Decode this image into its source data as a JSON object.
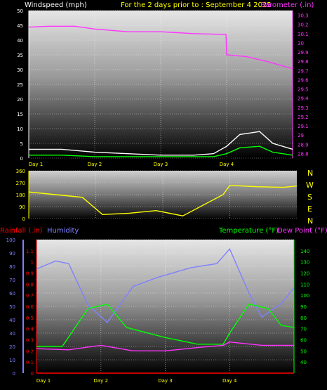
{
  "chart_data": [
    {
      "type": "line",
      "title": "For the 2 days prior to : September 4 2025",
      "ylabel_left": "Windspeed (mph)",
      "ylabel_right": "Barometer (.in)",
      "categories": [
        "Day 1",
        "Day 2",
        "Day 3",
        "Day 4"
      ],
      "y_left": {
        "range": [
          0,
          50
        ],
        "ticks": [
          "0",
          "5",
          "10",
          "15",
          "20",
          "25",
          "30",
          "35",
          "40",
          "45",
          "50"
        ]
      },
      "y_right": {
        "range": [
          28.75,
          30.35
        ],
        "ticks": [
          "28.8",
          "28.9",
          "29",
          "29.1",
          "29.2",
          "29.3",
          "29.4",
          "29.5",
          "29.6",
          "29.7",
          "29.8",
          "29.9",
          "30",
          "30.1",
          "30.2",
          "30.3"
        ]
      },
      "grid": true,
      "series": [
        {
          "axis": "right",
          "color": "#ff33ff",
          "x": [
            0,
            0.3,
            0.7,
            1.0,
            1.5,
            2.0,
            2.5,
            2.99,
            3.0,
            3.3,
            3.6,
            4.0
          ],
          "values": [
            30.17,
            30.18,
            30.18,
            30.15,
            30.12,
            30.12,
            30.1,
            30.09,
            29.87,
            29.85,
            29.8,
            29.72
          ]
        },
        {
          "axis": "left",
          "color": "#ffffff",
          "x": [
            0,
            0.5,
            1.0,
            1.5,
            2.0,
            2.5,
            2.8,
            3.0,
            3.2,
            3.5,
            3.7,
            4.0
          ],
          "values": [
            3,
            3,
            2,
            1.5,
            1,
            1,
            1.5,
            4,
            8,
            9,
            5,
            3
          ]
        },
        {
          "axis": "left",
          "color": "#00ff00",
          "x": [
            0,
            0.5,
            1.0,
            1.5,
            2.0,
            2.5,
            2.8,
            3.0,
            3.2,
            3.5,
            3.7,
            4.0
          ],
          "values": [
            1,
            1,
            0.5,
            0.5,
            0.5,
            0.5,
            0.5,
            1.5,
            3.5,
            4,
            2,
            1
          ]
        }
      ]
    },
    {
      "type": "line",
      "ylabel_right": "N W S E N",
      "direction_labels": [
        "N",
        "W",
        "S",
        "E",
        "N"
      ],
      "categories": [],
      "y": {
        "range": [
          0,
          360
        ],
        "ticks": [
          "0",
          "90",
          "180",
          "270",
          "360"
        ]
      },
      "grid": true,
      "series": [
        {
          "color": "#ffff00",
          "x": [
            0,
            0.4,
            0.8,
            1.1,
            1.5,
            1.9,
            2.3,
            2.9,
            3.0,
            3.4,
            3.8,
            4.0
          ],
          "values": [
            200,
            180,
            160,
            30,
            40,
            60,
            20,
            180,
            250,
            240,
            235,
            245
          ]
        }
      ]
    },
    {
      "type": "line",
      "ylabel_left_outer": "Rainfall (.in)",
      "ylabel_left_inner": "Humidity",
      "ylabel_right_a": "Temperature (°F)",
      "ylabel_right_b": "Dew Point (°F)",
      "categories": [
        "Day 1",
        "Day 2",
        "Day 3",
        "Day 4"
      ],
      "y_humidity": {
        "range": [
          0,
          100
        ],
        "ticks": [
          "0",
          "10",
          "20",
          "30",
          "40",
          "50",
          "60",
          "70",
          "80",
          "90",
          "100"
        ]
      },
      "y_rainfall": {
        "range": [
          0,
          1.2
        ],
        "ticks": [
          "0",
          "0.1",
          "0.2",
          "0.3",
          "0.4",
          "0.5",
          "0.6",
          "0.7",
          "0.8",
          "0.9",
          "1",
          "1.1"
        ]
      },
      "y_temperature": {
        "range": [
          30,
          150
        ],
        "ticks": [
          "40",
          "50",
          "60",
          "70",
          "80",
          "90",
          "100",
          "110",
          "120",
          "130",
          "140"
        ]
      },
      "grid": true,
      "series": [
        {
          "axis": "humidity",
          "color": "#8080ff",
          "x": [
            0,
            0.3,
            0.5,
            0.8,
            1.1,
            1.5,
            1.9,
            2.4,
            2.8,
            3.0,
            3.3,
            3.5,
            3.8,
            4.0
          ],
          "values": [
            78,
            84,
            82,
            51,
            38,
            65,
            72,
            79,
            82,
            93,
            60,
            42,
            52,
            64
          ]
        },
        {
          "axis": "temperature",
          "color": "#00ff00",
          "x": [
            0,
            0.4,
            0.8,
            1.1,
            1.4,
            2.0,
            2.5,
            2.9,
            3.0,
            3.3,
            3.6,
            3.8,
            4.0
          ],
          "values": [
            54,
            54,
            88,
            92,
            71,
            62,
            56,
            56,
            66,
            92,
            88,
            73,
            71
          ]
        },
        {
          "axis": "temperature",
          "color": "#ff33ff",
          "x": [
            0,
            0.5,
            1.0,
            1.5,
            2.0,
            2.5,
            2.9,
            3.0,
            3.5,
            4.0
          ],
          "values": [
            52,
            51,
            55,
            50,
            50,
            53,
            55,
            58,
            55,
            55
          ]
        },
        {
          "axis": "rainfall",
          "color": "#ff0000",
          "x": [
            0,
            4.0
          ],
          "values": [
            0,
            0
          ]
        }
      ]
    }
  ]
}
